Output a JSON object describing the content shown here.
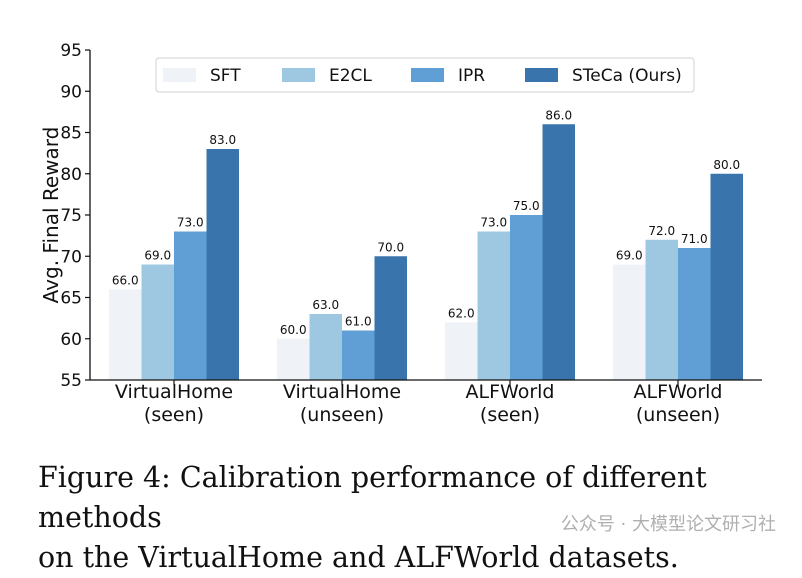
{
  "chart_data": {
    "type": "bar",
    "ylabel": "Avg. Final Reward",
    "xlabel": "",
    "ylim": [
      55,
      95
    ],
    "yticks": [
      55,
      60,
      65,
      70,
      75,
      80,
      85,
      90,
      95
    ],
    "grid": false,
    "legend_position": "top",
    "categories": [
      [
        "VirtualHome",
        "(seen)"
      ],
      [
        "VirtualHome",
        "(unseen)"
      ],
      [
        "ALFWorld",
        "(seen)"
      ],
      [
        "ALFWorld",
        "(unseen)"
      ]
    ],
    "series": [
      {
        "name": "SFT",
        "color": "#eff3f8",
        "values": [
          66.0,
          60.0,
          62.0,
          69.0
        ],
        "labels": [
          "66.0",
          "60.0",
          "62.0",
          "69.0"
        ]
      },
      {
        "name": "E2CL",
        "color": "#9ec8e2",
        "values": [
          69.0,
          63.0,
          73.0,
          72.0
        ],
        "labels": [
          "69.0",
          "63.0",
          "73.0",
          "72.0"
        ]
      },
      {
        "name": "IPR",
        "color": "#5f9fd5",
        "values": [
          73.0,
          61.0,
          75.0,
          71.0
        ],
        "labels": [
          "73.0",
          "61.0",
          "75.0",
          "71.0"
        ]
      },
      {
        "name": "STeCa (Ours)",
        "color": "#3a74ad",
        "values": [
          83.0,
          70.0,
          86.0,
          80.0
        ],
        "labels": [
          "83.0",
          "70.0",
          "86.0",
          "80.0"
        ]
      }
    ]
  },
  "caption": {
    "line1": "Figure 4: Calibration performance of different methods",
    "line2": "on the VirtualHome and ALFWorld datasets."
  },
  "watermark": "公众号 · 大模型论文研习社"
}
